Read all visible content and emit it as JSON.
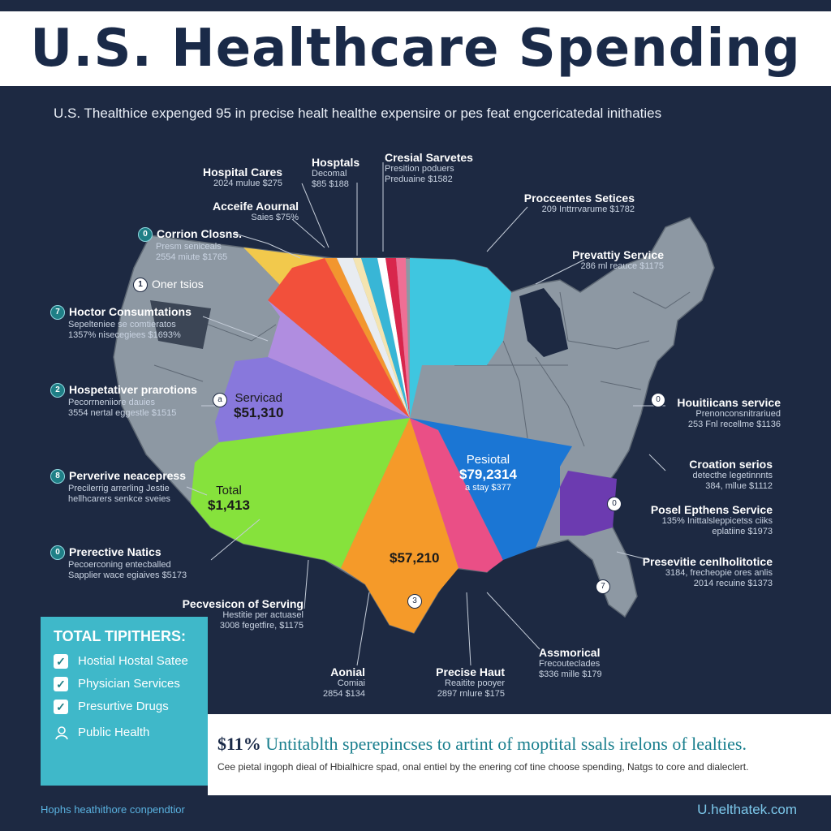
{
  "title": "U.S. Healthcare Spending",
  "subtitle": "U.S. Thealthice expenged 95 in precise healt healthe expensire or pes feat engcericatedal inithaties",
  "top_labels": [
    {
      "title": "Hospital Cares",
      "detail": "2024 mulue $275"
    },
    {
      "title": "Hosptals",
      "detail": "Decomal"
    },
    {
      "title": "",
      "detail": "$85 $188"
    },
    {
      "title": "Cresial Sarvetes",
      "detail": "Presition poduers"
    },
    {
      "title": "",
      "detail": "Preduaine $1582"
    },
    {
      "title": "Acceife Aournal",
      "detail": "Saies $75%"
    }
  ],
  "left_labels": [
    {
      "num": "0",
      "title": "Corrion Closns.",
      "detail1": "Presm seniceals",
      "detail2": "2554 miute $1765"
    },
    {
      "num": "1",
      "title": "Oner tsios",
      "detail1": "",
      "detail2": ""
    },
    {
      "num": "7",
      "title": "Hoctor Consumtations",
      "detail1": "Sepelteniee se comtieratos",
      "detail2": "1357% nisecegiees $1693%"
    },
    {
      "num": "2",
      "title": "Hospetativer prarotions",
      "detail1": "Pecorrneniiore dauies",
      "detail2": "3554 nertal eggestle $1515"
    },
    {
      "num": "8",
      "title": "Perverive neacepress",
      "detail1": "Precilerrig arrerling Jestie",
      "detail2": "hellhcarers senkce sveies"
    },
    {
      "num": "0",
      "title": "Prerective Natics",
      "detail1": "Pecoerconing entecballed",
      "detail2": "Sapplier wace egiaives $5173"
    }
  ],
  "right_labels": [
    {
      "title": "Procceentes Setices",
      "detail1": "209 Inttrrvarume $1782",
      "detail2": ""
    },
    {
      "title": "Prevattiy Service",
      "detail1": "286 ml reauce $1175",
      "detail2": ""
    },
    {
      "title": "Houitiicans service",
      "detail1": "Prenonconsnitrariued",
      "detail2": "253 Fnl recellme $1136"
    },
    {
      "title": "Croation serios",
      "detail1": "detecthe legetinnnts",
      "detail2": "384, mllue $1112"
    },
    {
      "title": "Posel Epthens Service",
      "detail1": "135% Inittalsleppicetss ciiks",
      "detail2": "eplatiine $1973"
    },
    {
      "title": "Presevitie cenlholitotice",
      "detail1": "3184, frecheopie ores anlis",
      "detail2": "2014 recuine $1373"
    }
  ],
  "bottom_labels": [
    {
      "title": "Pecvesicon of Serving",
      "detail1": "Hestitie per actuasel",
      "detail2": "3008 fegetfire, $1175"
    },
    {
      "title": "Aonial",
      "detail1": "Comiai",
      "detail2": "2854 $134"
    },
    {
      "title": "Precise Haut",
      "detail1": "Reaitite pooyer",
      "detail2": "2897 rnlure $175"
    },
    {
      "title": "Assmorical",
      "detail1": "Frecouteclades",
      "detail2": "$336 mille $179"
    }
  ],
  "slice_values": [
    {
      "label": "Servicad",
      "value": "$51,310"
    },
    {
      "label": "Total",
      "value": "$1,413"
    },
    {
      "label": "",
      "value": "$57,210"
    },
    {
      "label": "Pesiotal",
      "value": "$79,2314"
    },
    {
      "label": "",
      "value": "a stay $377"
    }
  ],
  "markers": [
    "a",
    "3",
    "0",
    "0",
    "7"
  ],
  "total_box": {
    "title": "TOTAL TIPITHERS:",
    "items": [
      "Hostial Hostal Satee",
      "Physician Services",
      "Presurtive Drugs"
    ],
    "extra_item": "Public Health"
  },
  "stat": {
    "percent": "$11%",
    "text": "Untitablth sperepincses to artint of moptital ssals irelons of lealties."
  },
  "note": "Cee pietal ingoph dieal of Hbialhicre spad, onal entiel by the enering cof tine choose spending, Natgs to core and dialeclert.",
  "footer": {
    "left": "Hophs heathithore conpendtior",
    "right": "U.helthatek.com"
  },
  "colors": {
    "background": "#1d2942",
    "map_gray": "#8d98a3",
    "panel": "#3fb8c9"
  }
}
